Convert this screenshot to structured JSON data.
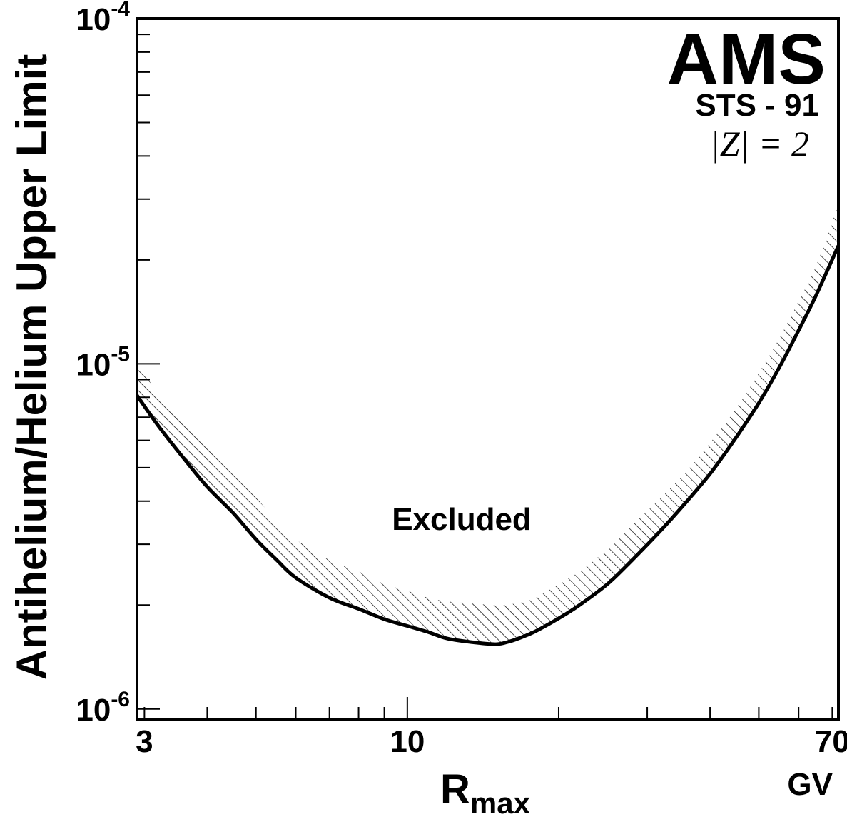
{
  "chart_data": {
    "type": "line",
    "x_scale": "log",
    "y_scale": "log",
    "xlim": [
      2.9,
      72
    ],
    "ylim": [
      9.3e-07,
      0.0001
    ],
    "xlabel": "R",
    "xlabel_sub": "max",
    "x_unit": "GV",
    "ylabel": "Antihelium/Helium Upper Limit",
    "x_ticks": [
      {
        "value": 3,
        "label": "3"
      },
      {
        "value": 10,
        "label": "10"
      },
      {
        "value": 70,
        "label": "70"
      }
    ],
    "y_ticks": [
      {
        "value": 1e-06,
        "base": "10",
        "exp": "-6"
      },
      {
        "value": 1e-05,
        "base": "10",
        "exp": "-5"
      },
      {
        "value": 0.0001,
        "base": "10",
        "exp": "-4"
      }
    ],
    "series": [
      {
        "role": "limit curve",
        "x": [
          2.9,
          3.2,
          3.6,
          4.0,
          4.5,
          5.0,
          5.5,
          6.0,
          7.0,
          8.0,
          9.0,
          10.0,
          11.0,
          12.0,
          13.5,
          15.0,
          16.0,
          17.0,
          18.0,
          20.0,
          22.0,
          25.0,
          28.0,
          32.0,
          36.0,
          40.0,
          45.0,
          50.0,
          55.0,
          60.0,
          65.0,
          72.0
        ],
        "y": [
          8.1e-06,
          6.6e-06,
          5.3e-06,
          4.4e-06,
          3.7e-06,
          3.1e-06,
          2.7e-06,
          2.4e-06,
          2.1e-06,
          1.95e-06,
          1.82e-06,
          1.74e-06,
          1.67e-06,
          1.6e-06,
          1.56e-06,
          1.54e-06,
          1.57e-06,
          1.62e-06,
          1.68e-06,
          1.83e-06,
          2e-06,
          2.3e-06,
          2.7e-06,
          3.3e-06,
          4e-06,
          4.8e-06,
          6.1e-06,
          7.7e-06,
          9.8e-06,
          1.25e-05,
          1.58e-05,
          2.2e-05
        ]
      },
      {
        "role": "shaded band upper edge",
        "x": [
          2.9,
          3.2,
          3.6,
          4.0,
          4.5,
          5.0,
          5.5,
          6.0,
          7.0,
          8.0,
          9.0,
          10.0,
          11.0,
          12.0,
          13.5,
          15.0,
          16.0,
          17.0,
          18.0,
          20.0,
          22.0,
          25.0,
          28.0,
          32.0,
          36.0,
          40.0,
          45.0,
          50.0,
          55.0,
          60.0,
          65.0,
          72.0
        ],
        "y": [
          1.01e-05,
          8.2e-06,
          6.8e-06,
          5.8e-06,
          4.8e-06,
          4.1e-06,
          3.5e-06,
          3.1e-06,
          2.7e-06,
          2.5e-06,
          2.3e-06,
          2.2e-06,
          2.1e-06,
          2.05e-06,
          2.02e-06,
          2e-06,
          2.01e-06,
          2.04e-06,
          2.1e-06,
          2.3e-06,
          2.5e-06,
          2.9e-06,
          3.4e-06,
          4.1e-06,
          4.9e-06,
          5.9e-06,
          7.4e-06,
          9.4e-06,
          1.19e-05,
          1.52e-05,
          1.92e-05,
          2.9e-05
        ]
      }
    ],
    "annotations": {
      "experiment": "AMS",
      "mission": "STS - 91",
      "charge": "|Z| = 2",
      "region_label": "Excluded"
    },
    "grid": false,
    "colors": {
      "line": "#000000",
      "hatch": "#000000",
      "background": "#ffffff"
    }
  }
}
